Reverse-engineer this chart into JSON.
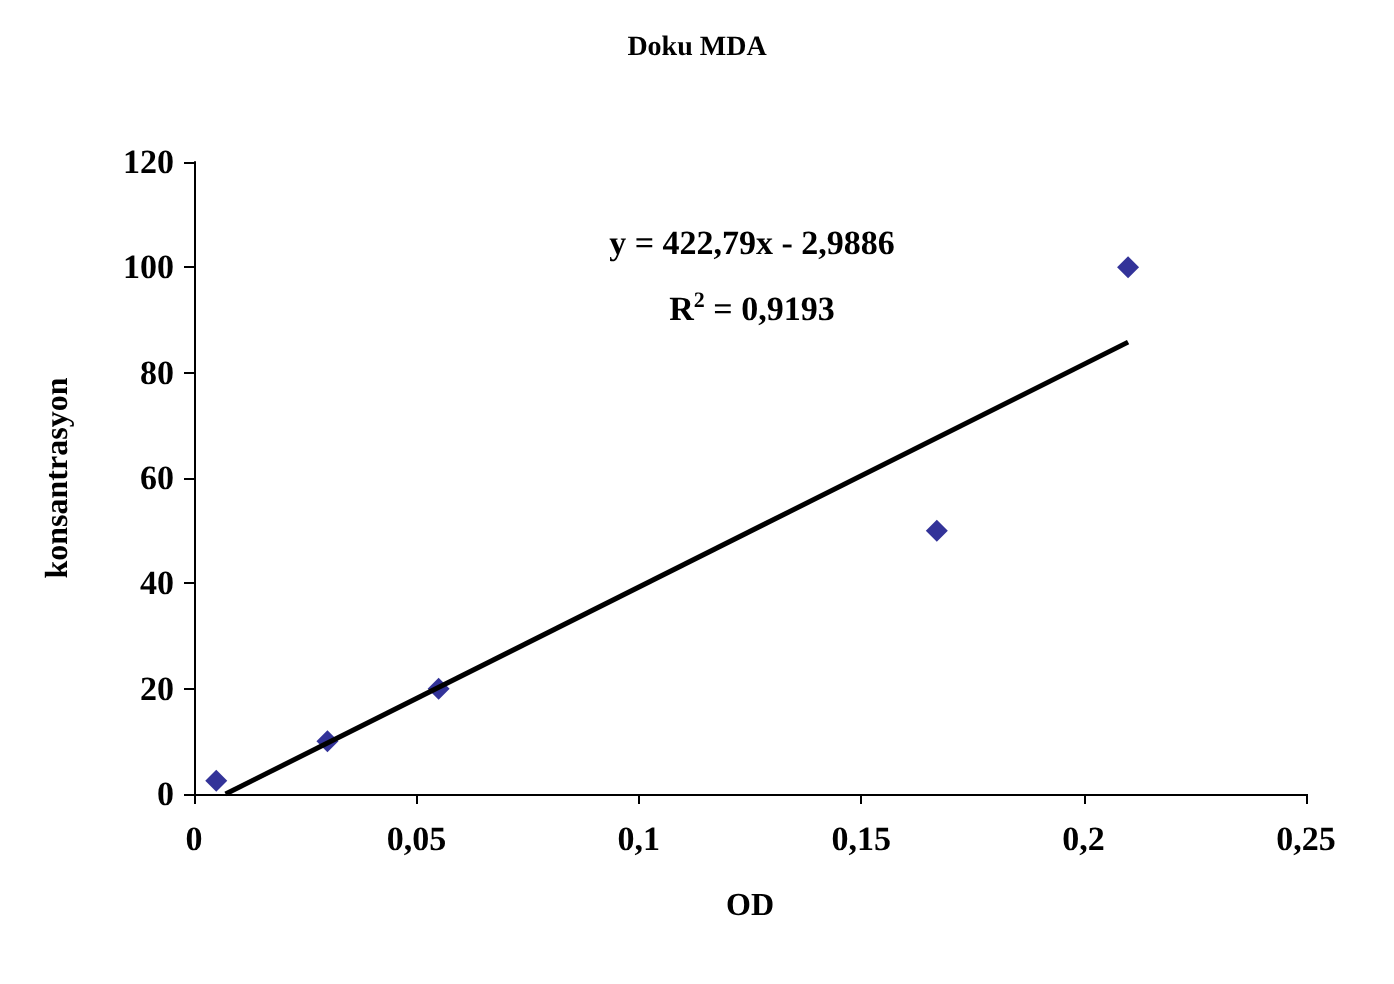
{
  "chart_data": {
    "type": "scatter",
    "title": "Doku MDA",
    "xlabel": "OD",
    "ylabel": "konsantrasyon",
    "annotations": [
      "y = 422,79x - 2,9886",
      "R$^{2}$ = 0,9193"
    ],
    "series": [
      {
        "color": "#000080",
        "marker": "diamond",
        "x": [
          0.005,
          0.03,
          0.055,
          0.167,
          0.21
        ],
        "values": [
          2.5,
          10,
          20,
          50,
          100
        ]
      },
      {
        "type": "line",
        "color": "#000000",
        "marker": "none",
        "line_style": "solid",
        "x": [
          0.0071,
          0.21
        ],
        "values": [
          0,
          85.8
        ]
      }
    ],
    "xlim": [
      0,
      0.25
    ],
    "xticks": [
      0,
      {
        "value": 0.05,
        "label": "0,05"
      },
      {
        "value": 0.1,
        "label": "0,1"
      },
      {
        "value": 0.15,
        "label": "0,15"
      },
      {
        "value": 0.2,
        "label": "0,2"
      },
      {
        "value": 0.25,
        "label": "0,25"
      }
    ],
    "ylim": [
      0,
      120
    ],
    "yticks": [
      0,
      20,
      40,
      60,
      80,
      100,
      120
    ],
    "grid": false
  }
}
